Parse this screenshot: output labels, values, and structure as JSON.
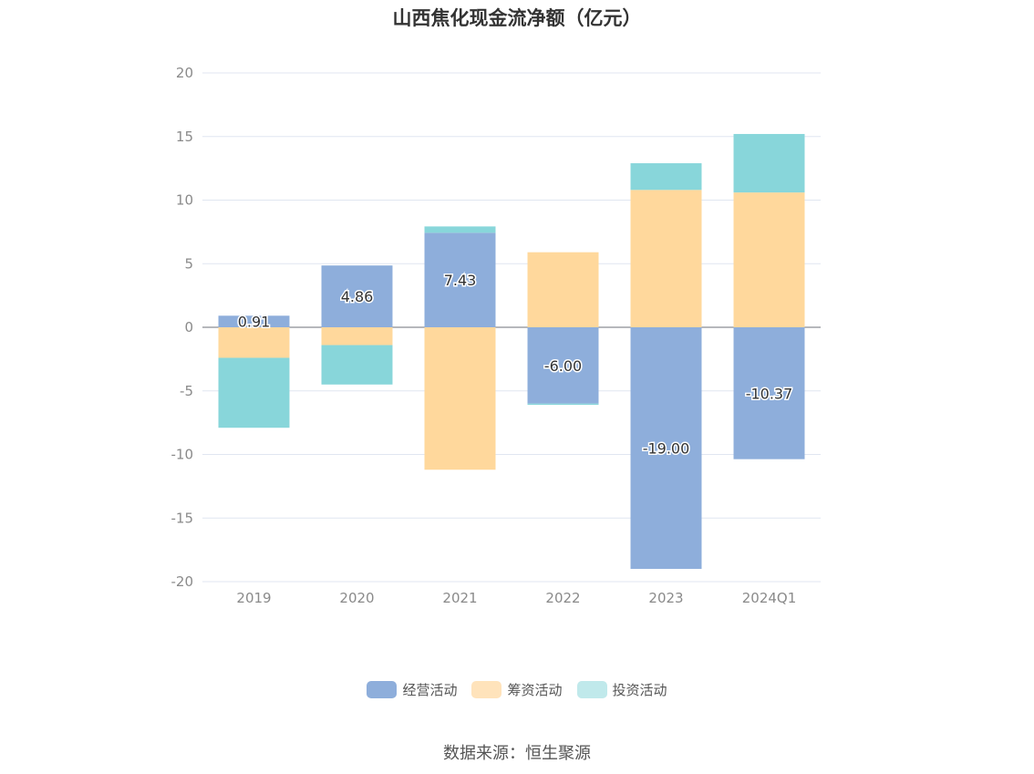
{
  "chart_data": {
    "type": "bar",
    "stacked": true,
    "title": "山西焦化现金流净额（亿元）",
    "xlabel": "",
    "ylabel": "",
    "categories": [
      "2019",
      "2020",
      "2021",
      "2022",
      "2023",
      "2024Q1"
    ],
    "ylim": [
      -20,
      20
    ],
    "yticks": [
      20,
      15,
      10,
      5,
      0,
      -5,
      -10,
      -15,
      -20
    ],
    "grid": true,
    "legend_position": "bottom",
    "series": [
      {
        "name": "经营活动",
        "color": "#8eaedb",
        "values": [
          0.91,
          4.86,
          7.43,
          -6.0,
          -19.0,
          -10.37
        ],
        "labels": [
          "0.91",
          "4.86",
          "7.43",
          "-6.00",
          "-19.00",
          "-10.37"
        ]
      },
      {
        "name": "筹资活动",
        "color": "#ffd89c",
        "values": [
          -2.4,
          -1.4,
          -11.2,
          5.9,
          10.8,
          10.6
        ]
      },
      {
        "name": "投资活动",
        "color": "#88d6da",
        "values": [
          -5.5,
          -3.1,
          0.5,
          -0.1,
          2.1,
          4.6
        ]
      }
    ]
  },
  "legend_items": [
    {
      "label": "经营活动",
      "color": "#8eaedb"
    },
    {
      "label": "筹资活动",
      "color": "#ffe3bb"
    },
    {
      "label": "投资活动",
      "color": "#c0e9eb"
    }
  ],
  "source_text": "数据来源：恒生聚源"
}
